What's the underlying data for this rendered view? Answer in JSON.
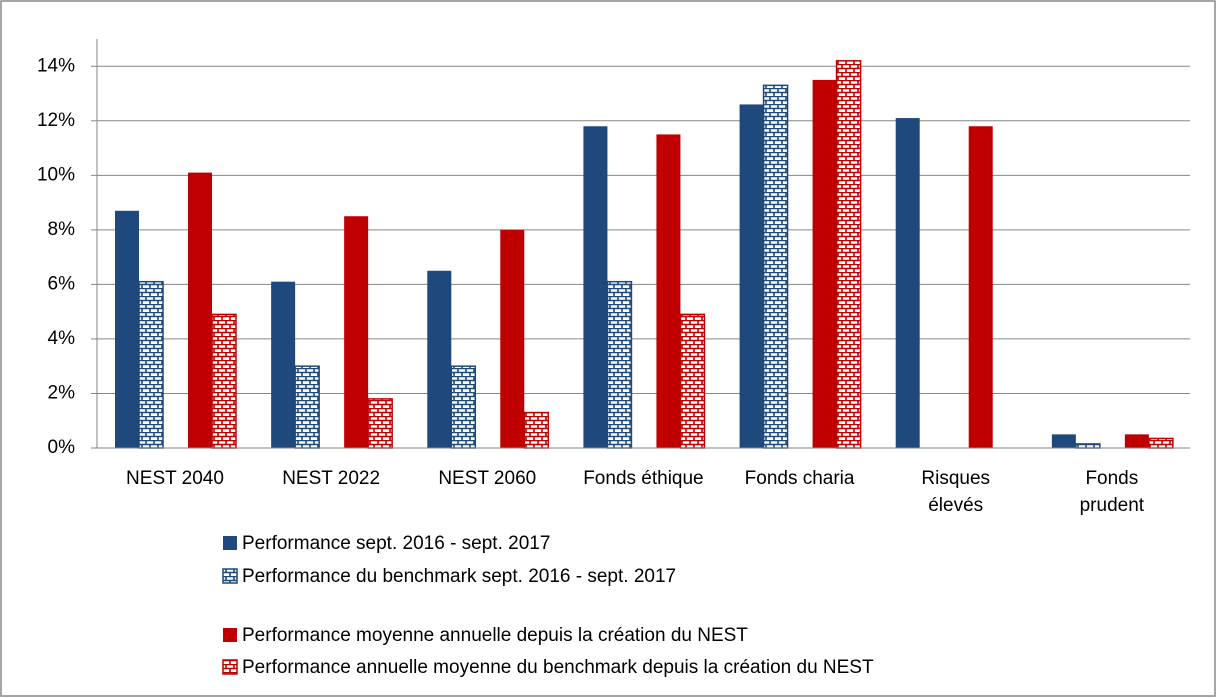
{
  "chart_data": {
    "type": "bar",
    "categories": [
      "NEST 2040",
      "NEST 2022",
      "NEST 2060",
      "Fonds éthique",
      "Fonds charia",
      "Risques\nélevés",
      "Fonds\nprudent"
    ],
    "series": [
      {
        "name": "Performance sept. 2016 - sept. 2017",
        "color": "#1f497d",
        "values": [
          8.7,
          6.1,
          6.5,
          11.8,
          12.6,
          12.1,
          0.5
        ]
      },
      {
        "name": "Performance du benchmark sept. 2016 - sept. 2017",
        "color": "#1f497d",
        "pattern": "brick",
        "values": [
          6.1,
          3.0,
          3.0,
          6.1,
          13.3,
          null,
          0.15
        ]
      },
      {
        "name": "Performance moyenne annuelle depuis la création du NEST",
        "color": "#c00000",
        "values": [
          10.1,
          8.5,
          8.0,
          11.5,
          13.5,
          11.8,
          0.5
        ]
      },
      {
        "name": "Performance annuelle moyenne du benchmark depuis la création du NEST",
        "color": "#c00000",
        "pattern": "brick",
        "values": [
          4.9,
          1.8,
          1.3,
          4.9,
          14.2,
          null,
          0.35
        ]
      }
    ],
    "ylim": [
      0,
      15
    ],
    "yticks": [
      {
        "value": 0,
        "label": "0%"
      },
      {
        "value": 2,
        "label": "2%"
      },
      {
        "value": 4,
        "label": "4%"
      },
      {
        "value": 6,
        "label": "6%"
      },
      {
        "value": 8,
        "label": "8%"
      },
      {
        "value": 10,
        "label": "10%"
      },
      {
        "value": 12,
        "label": "12%"
      },
      {
        "value": 14,
        "label": "14%"
      }
    ],
    "grid": true
  }
}
